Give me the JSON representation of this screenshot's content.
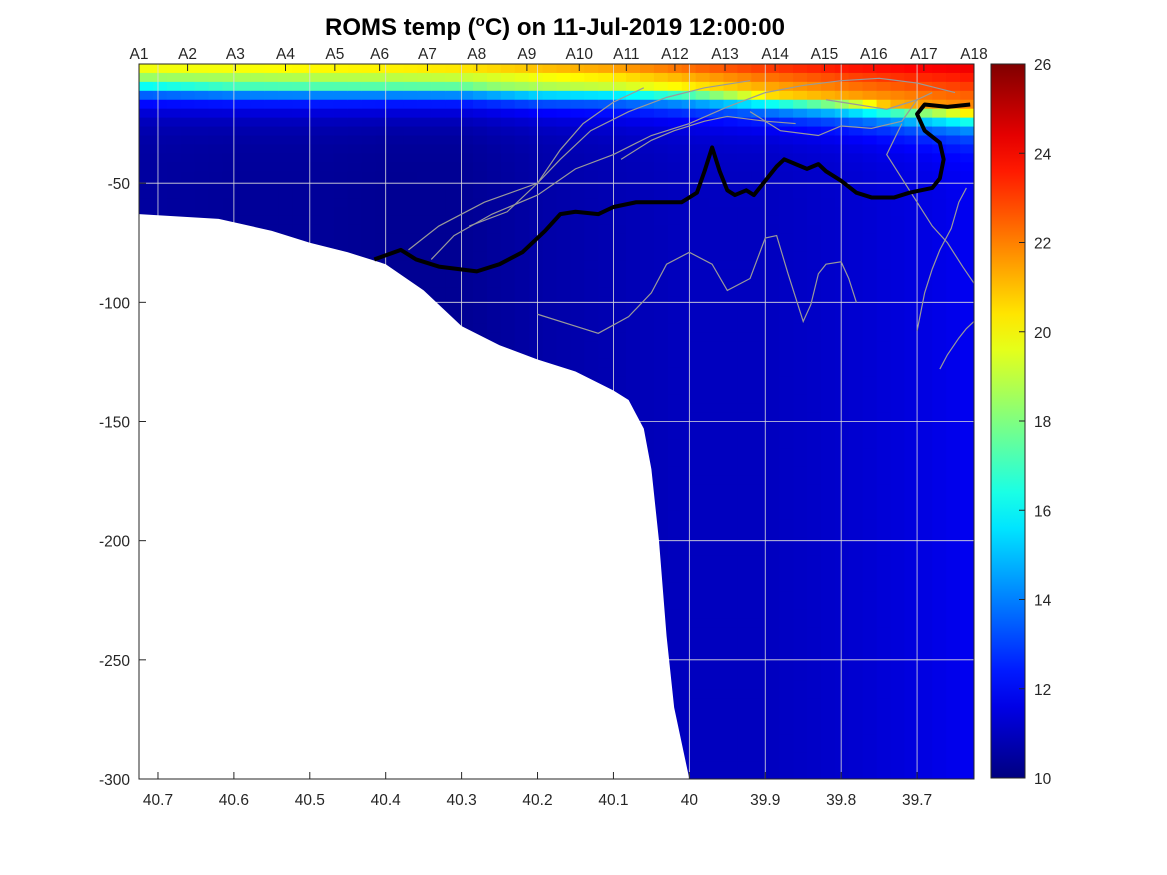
{
  "chart_data": {
    "type": "heatmap",
    "title_prefix": "ROMS temp (",
    "title_unit_sup": "o",
    "title_suffix": "C) on 11-Jul-2019 12:00:00",
    "xlim": [
      40.725,
      39.625
    ],
    "ylim": [
      -300,
      0
    ],
    "x_ticks": [
      40.7,
      40.6,
      40.5,
      40.4,
      40.3,
      40.2,
      40.1,
      40,
      39.9,
      39.8,
      39.7
    ],
    "x_tick_labels": [
      "40.7",
      "40.6",
      "40.5",
      "40.4",
      "40.3",
      "40.2",
      "40.1",
      "40",
      "39.9",
      "39.8",
      "39.7"
    ],
    "y_ticks": [
      -50,
      -100,
      -150,
      -200,
      -250,
      -300
    ],
    "y_tick_labels": [
      "-50",
      "-100",
      "-150",
      "-200",
      "-250",
      "-300"
    ],
    "grid": true,
    "stations": {
      "labels": [
        "A1",
        "A2",
        "A3",
        "A4",
        "A5",
        "A6",
        "A7",
        "A8",
        "A9",
        "A10",
        "A11",
        "A12",
        "A13",
        "A14",
        "A15",
        "A16",
        "A17",
        "A18"
      ],
      "lat": [
        40.725,
        40.661,
        40.598,
        40.532,
        40.467,
        40.408,
        40.345,
        40.28,
        40.214,
        40.145,
        40.083,
        40.019,
        39.953,
        39.887,
        39.822,
        39.757,
        39.691,
        39.625
      ]
    },
    "colorbar": {
      "colormap": "jet",
      "clim": [
        10,
        26
      ],
      "ticks": [
        10,
        12,
        14,
        16,
        18,
        20,
        22,
        24,
        26
      ],
      "tick_labels": [
        "10",
        "12",
        "14",
        "16",
        "18",
        "20",
        "22",
        "24",
        "26"
      ]
    },
    "bathymetry": [
      [
        40.725,
        -63
      ],
      [
        40.62,
        -65
      ],
      [
        40.55,
        -70
      ],
      [
        40.5,
        -75
      ],
      [
        40.45,
        -79
      ],
      [
        40.4,
        -84
      ],
      [
        40.35,
        -95
      ],
      [
        40.3,
        -110
      ],
      [
        40.25,
        -118
      ],
      [
        40.2,
        -124
      ],
      [
        40.15,
        -129
      ],
      [
        40.1,
        -137
      ],
      [
        40.08,
        -141
      ],
      [
        40.06,
        -153
      ],
      [
        40.05,
        -170
      ],
      [
        40.04,
        -200
      ],
      [
        40.03,
        -240
      ],
      [
        40.02,
        -270
      ],
      [
        40.0,
        -300
      ]
    ],
    "surface_temp_profile": [
      {
        "lat": 40.725,
        "t0": 20.5,
        "mld": 8,
        "t_deep": 10.5
      },
      {
        "lat": 40.6,
        "t0": 20.5,
        "mld": 9,
        "t_deep": 10.4
      },
      {
        "lat": 40.5,
        "t0": 20.7,
        "mld": 9,
        "t_deep": 10.4
      },
      {
        "lat": 40.4,
        "t0": 20.8,
        "mld": 9,
        "t_deep": 10.3
      },
      {
        "lat": 40.3,
        "t0": 21.0,
        "mld": 9,
        "t_deep": 10.3
      },
      {
        "lat": 40.2,
        "t0": 21.5,
        "mld": 10,
        "t_deep": 10.6
      },
      {
        "lat": 40.1,
        "t0": 22.0,
        "mld": 10,
        "t_deep": 10.8
      },
      {
        "lat": 40.0,
        "t0": 22.8,
        "mld": 11,
        "t_deep": 11.0
      },
      {
        "lat": 39.9,
        "t0": 23.5,
        "mld": 13,
        "t_deep": 11.0
      },
      {
        "lat": 39.8,
        "t0": 24.0,
        "mld": 15,
        "t_deep": 11.2
      },
      {
        "lat": 39.7,
        "t0": 24.3,
        "mld": 18,
        "t_deep": 11.5
      },
      {
        "lat": 39.625,
        "t0": 24.5,
        "mld": 20,
        "t_deep": 11.8
      }
    ],
    "isotherm_thick": [
      [
        40.415,
        -82
      ],
      [
        40.38,
        -78
      ],
      [
        40.36,
        -82
      ],
      [
        40.33,
        -85
      ],
      [
        40.28,
        -87
      ],
      [
        40.25,
        -84
      ],
      [
        40.22,
        -79
      ],
      [
        40.19,
        -70
      ],
      [
        40.17,
        -63
      ],
      [
        40.15,
        -62
      ],
      [
        40.12,
        -63
      ],
      [
        40.1,
        -60
      ],
      [
        40.07,
        -58
      ],
      [
        40.04,
        -58
      ],
      [
        40.01,
        -58
      ],
      [
        39.99,
        -54
      ],
      [
        39.98,
        -45
      ],
      [
        39.97,
        -35
      ],
      [
        39.96,
        -45
      ],
      [
        39.95,
        -53
      ],
      [
        39.94,
        -55
      ],
      [
        39.925,
        -53
      ],
      [
        39.915,
        -55
      ],
      [
        39.9,
        -49
      ],
      [
        39.885,
        -43
      ],
      [
        39.875,
        -40
      ],
      [
        39.86,
        -42
      ],
      [
        39.845,
        -44
      ],
      [
        39.83,
        -42
      ],
      [
        39.82,
        -45
      ],
      [
        39.8,
        -49
      ],
      [
        39.78,
        -54
      ],
      [
        39.76,
        -56
      ],
      [
        39.73,
        -56
      ],
      [
        39.71,
        -54
      ],
      [
        39.68,
        -52
      ],
      [
        39.67,
        -48
      ],
      [
        39.665,
        -40
      ],
      [
        39.67,
        -33
      ],
      [
        39.69,
        -28
      ],
      [
        39.7,
        -21
      ],
      [
        39.69,
        -17
      ],
      [
        39.66,
        -18
      ],
      [
        39.63,
        -17
      ]
    ],
    "isotherm_thin": [
      [
        [
          40.34,
          -82
        ],
        [
          40.31,
          -72
        ],
        [
          40.26,
          -63
        ],
        [
          40.2,
          -55
        ],
        [
          40.15,
          -44
        ],
        [
          40.1,
          -38
        ],
        [
          40.05,
          -30
        ],
        [
          40.0,
          -25
        ],
        [
          39.95,
          -18
        ],
        [
          39.9,
          -12
        ],
        [
          39.85,
          -9
        ],
        [
          39.8,
          -7
        ],
        [
          39.75,
          -6
        ],
        [
          39.7,
          -8
        ],
        [
          39.65,
          -12
        ]
      ],
      [
        [
          40.37,
          -78
        ],
        [
          40.33,
          -68
        ],
        [
          40.27,
          -58
        ],
        [
          40.2,
          -50
        ],
        [
          40.17,
          -40
        ],
        [
          40.13,
          -28
        ],
        [
          40.08,
          -20
        ],
        [
          40.03,
          -14
        ],
        [
          39.98,
          -10
        ],
        [
          39.92,
          -7
        ]
      ],
      [
        [
          40.29,
          -68
        ],
        [
          40.24,
          -62
        ],
        [
          40.2,
          -50
        ],
        [
          40.17,
          -36
        ],
        [
          40.14,
          -25
        ],
        [
          40.1,
          -16
        ],
        [
          40.06,
          -10
        ]
      ],
      [
        [
          40.2,
          -105
        ],
        [
          40.15,
          -110
        ],
        [
          40.12,
          -113
        ],
        [
          40.08,
          -106
        ],
        [
          40.05,
          -96
        ],
        [
          40.03,
          -84
        ],
        [
          40.0,
          -79
        ],
        [
          39.97,
          -84
        ],
        [
          39.95,
          -95
        ],
        [
          39.92,
          -90
        ],
        [
          39.9,
          -73
        ],
        [
          39.885,
          -72
        ],
        [
          39.87,
          -88
        ],
        [
          39.86,
          -98
        ],
        [
          39.85,
          -108
        ],
        [
          39.84,
          -101
        ],
        [
          39.83,
          -88
        ],
        [
          39.82,
          -84
        ],
        [
          39.8,
          -83
        ],
        [
          39.79,
          -90
        ],
        [
          39.78,
          -100
        ]
      ],
      [
        [
          39.72,
          -25
        ],
        [
          39.74,
          -38
        ],
        [
          39.72,
          -48
        ],
        [
          39.7,
          -58
        ],
        [
          39.68,
          -68
        ],
        [
          39.66,
          -75
        ],
        [
          39.64,
          -85
        ],
        [
          39.625,
          -92
        ]
      ],
      [
        [
          39.7,
          -112
        ],
        [
          39.69,
          -96
        ],
        [
          39.68,
          -86
        ],
        [
          39.67,
          -78
        ],
        [
          39.655,
          -69
        ],
        [
          39.645,
          -58
        ],
        [
          39.635,
          -52
        ]
      ],
      [
        [
          39.67,
          -128
        ],
        [
          39.66,
          -122
        ],
        [
          39.645,
          -115
        ],
        [
          39.635,
          -111
        ],
        [
          39.625,
          -108
        ]
      ],
      [
        [
          39.92,
          -20
        ],
        [
          39.88,
          -28
        ],
        [
          39.83,
          -30
        ],
        [
          39.8,
          -26
        ],
        [
          39.76,
          -27
        ],
        [
          39.72,
          -24
        ],
        [
          39.7,
          -15
        ],
        [
          39.68,
          -12
        ]
      ],
      [
        [
          39.82,
          -15
        ],
        [
          39.78,
          -17
        ],
        [
          39.74,
          -19
        ],
        [
          39.7,
          -15
        ]
      ],
      [
        [
          40.09,
          -40
        ],
        [
          40.05,
          -32
        ],
        [
          40.02,
          -28
        ],
        [
          39.98,
          -24
        ],
        [
          39.95,
          -22
        ],
        [
          39.9,
          -24
        ],
        [
          39.86,
          -25
        ]
      ]
    ]
  }
}
